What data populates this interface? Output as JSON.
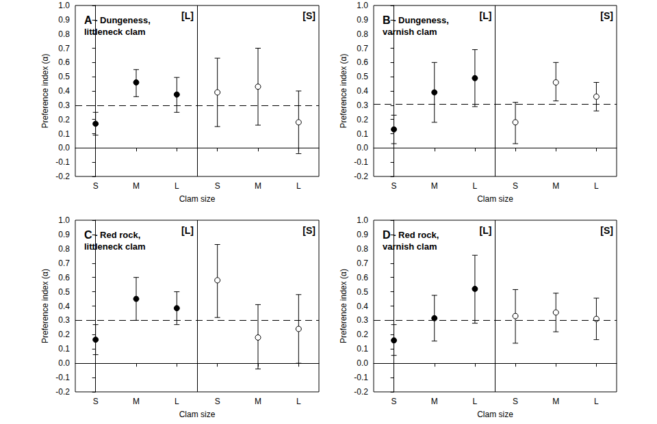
{
  "chart_data": [
    {
      "type": "scatter",
      "title": "A - Dungeness, littleneck clam",
      "xlabel": "Clam size",
      "ylabel": "Preference index (α)",
      "categories": [
        "S",
        "M",
        "L",
        "S",
        "M",
        "L"
      ],
      "ylim": [
        -0.2,
        1.0
      ],
      "yticks": [
        -0.2,
        -0.1,
        {
          "value": 0,
          "label": "0.0"
        },
        0.1,
        0.2,
        0.3,
        0.4,
        0.5,
        0.6,
        0.7,
        0.8,
        0.9,
        {
          "value": 1,
          "label": "1.0"
        }
      ],
      "grid": false,
      "reference": {
        "value": 0.3,
        "line_style": "dashed"
      },
      "series": [
        {
          "name": "[L]",
          "marker": "filled",
          "color": "#000000",
          "values": [
            0.17,
            0.46,
            0.375,
            null,
            null,
            null
          ],
          "lower": [
            0.09,
            0.36,
            0.25,
            null,
            null,
            null
          ],
          "upper": [
            0.25,
            0.55,
            0.495,
            null,
            null,
            null
          ]
        },
        {
          "name": "[S]",
          "marker": "open",
          "color": "#000000",
          "values": [
            null,
            null,
            null,
            0.39,
            0.43,
            0.18
          ],
          "lower": [
            null,
            null,
            null,
            0.15,
            0.16,
            -0.04
          ],
          "upper": [
            null,
            null,
            null,
            0.63,
            0.7,
            0.4
          ]
        }
      ]
    },
    {
      "type": "scatter",
      "title": "B - Dungeness, varnish clam",
      "xlabel": "Clam size",
      "ylabel": "Preference index (α)",
      "categories": [
        "S",
        "M",
        "L",
        "S",
        "M",
        "L"
      ],
      "ylim": [
        -0.2,
        1.0
      ],
      "yticks": [
        -0.2,
        -0.1,
        {
          "value": 0,
          "label": "0.0"
        },
        0.1,
        0.2,
        0.3,
        0.4,
        0.5,
        0.6,
        0.7,
        0.8,
        0.9,
        {
          "value": 1,
          "label": "1.0"
        }
      ],
      "grid": false,
      "reference": {
        "value": 0.31,
        "line_style": "dashed"
      },
      "series": [
        {
          "name": "[L]",
          "marker": "filled",
          "color": "#000000",
          "values": [
            0.13,
            0.39,
            0.49,
            null,
            null,
            null
          ],
          "lower": [
            0.03,
            0.18,
            0.29,
            null,
            null,
            null
          ],
          "upper": [
            0.23,
            0.6,
            0.69,
            null,
            null,
            null
          ]
        },
        {
          "name": "[S]",
          "marker": "open",
          "color": "#000000",
          "values": [
            null,
            null,
            null,
            0.18,
            0.46,
            0.36
          ],
          "lower": [
            null,
            null,
            null,
            0.03,
            0.33,
            0.26
          ],
          "upper": [
            null,
            null,
            null,
            0.32,
            0.6,
            0.46
          ]
        }
      ]
    },
    {
      "type": "scatter",
      "title": "C - Red rock, littleneck clam",
      "xlabel": "Clam size",
      "ylabel": "Preference index (α)",
      "categories": [
        "S",
        "M",
        "L",
        "S",
        "M",
        "L"
      ],
      "ylim": [
        -0.2,
        1.0
      ],
      "yticks": [
        -0.2,
        -0.1,
        {
          "value": 0,
          "label": "0.0"
        },
        0.1,
        0.2,
        0.3,
        0.4,
        0.5,
        0.6,
        0.7,
        0.8,
        0.9,
        {
          "value": 1,
          "label": "1.0"
        }
      ],
      "grid": false,
      "reference": {
        "value": 0.3,
        "line_style": "dashed"
      },
      "series": [
        {
          "name": "[L]",
          "marker": "filled",
          "color": "#000000",
          "values": [
            0.165,
            0.45,
            0.385,
            null,
            null,
            null
          ],
          "lower": [
            0.06,
            0.3,
            0.27,
            null,
            null,
            null
          ],
          "upper": [
            0.27,
            0.6,
            0.5,
            null,
            null,
            null
          ]
        },
        {
          "name": "[S]",
          "marker": "open",
          "color": "#000000",
          "values": [
            null,
            null,
            null,
            0.58,
            0.18,
            0.24
          ],
          "lower": [
            null,
            null,
            null,
            0.32,
            -0.04,
            0.0
          ],
          "upper": [
            null,
            null,
            null,
            0.83,
            0.41,
            0.48
          ]
        }
      ]
    },
    {
      "type": "scatter",
      "title": "D - Red rock, varnish clam",
      "xlabel": "Clam size",
      "ylabel": "Preference index (α)",
      "categories": [
        "S",
        "M",
        "L",
        "S",
        "M",
        "L"
      ],
      "ylim": [
        -0.2,
        1.0
      ],
      "yticks": [
        -0.2,
        -0.1,
        {
          "value": 0,
          "label": "0.0"
        },
        0.1,
        0.2,
        0.3,
        0.4,
        0.5,
        0.6,
        0.7,
        0.8,
        0.9,
        {
          "value": 1,
          "label": "1.0"
        }
      ],
      "grid": false,
      "reference": {
        "value": 0.3,
        "line_style": "dashed"
      },
      "series": [
        {
          "name": "[L]",
          "marker": "filled",
          "color": "#000000",
          "values": [
            0.16,
            0.315,
            0.52,
            null,
            null,
            null
          ],
          "lower": [
            0.055,
            0.155,
            0.28,
            null,
            null,
            null
          ],
          "upper": [
            0.27,
            0.475,
            0.755,
            null,
            null,
            null
          ]
        },
        {
          "name": "[S]",
          "marker": "open",
          "color": "#000000",
          "values": [
            null,
            null,
            null,
            0.33,
            0.355,
            0.31
          ],
          "lower": [
            null,
            null,
            null,
            0.14,
            0.22,
            0.165
          ],
          "upper": [
            null,
            null,
            null,
            0.515,
            0.49,
            0.455
          ]
        }
      ]
    }
  ]
}
